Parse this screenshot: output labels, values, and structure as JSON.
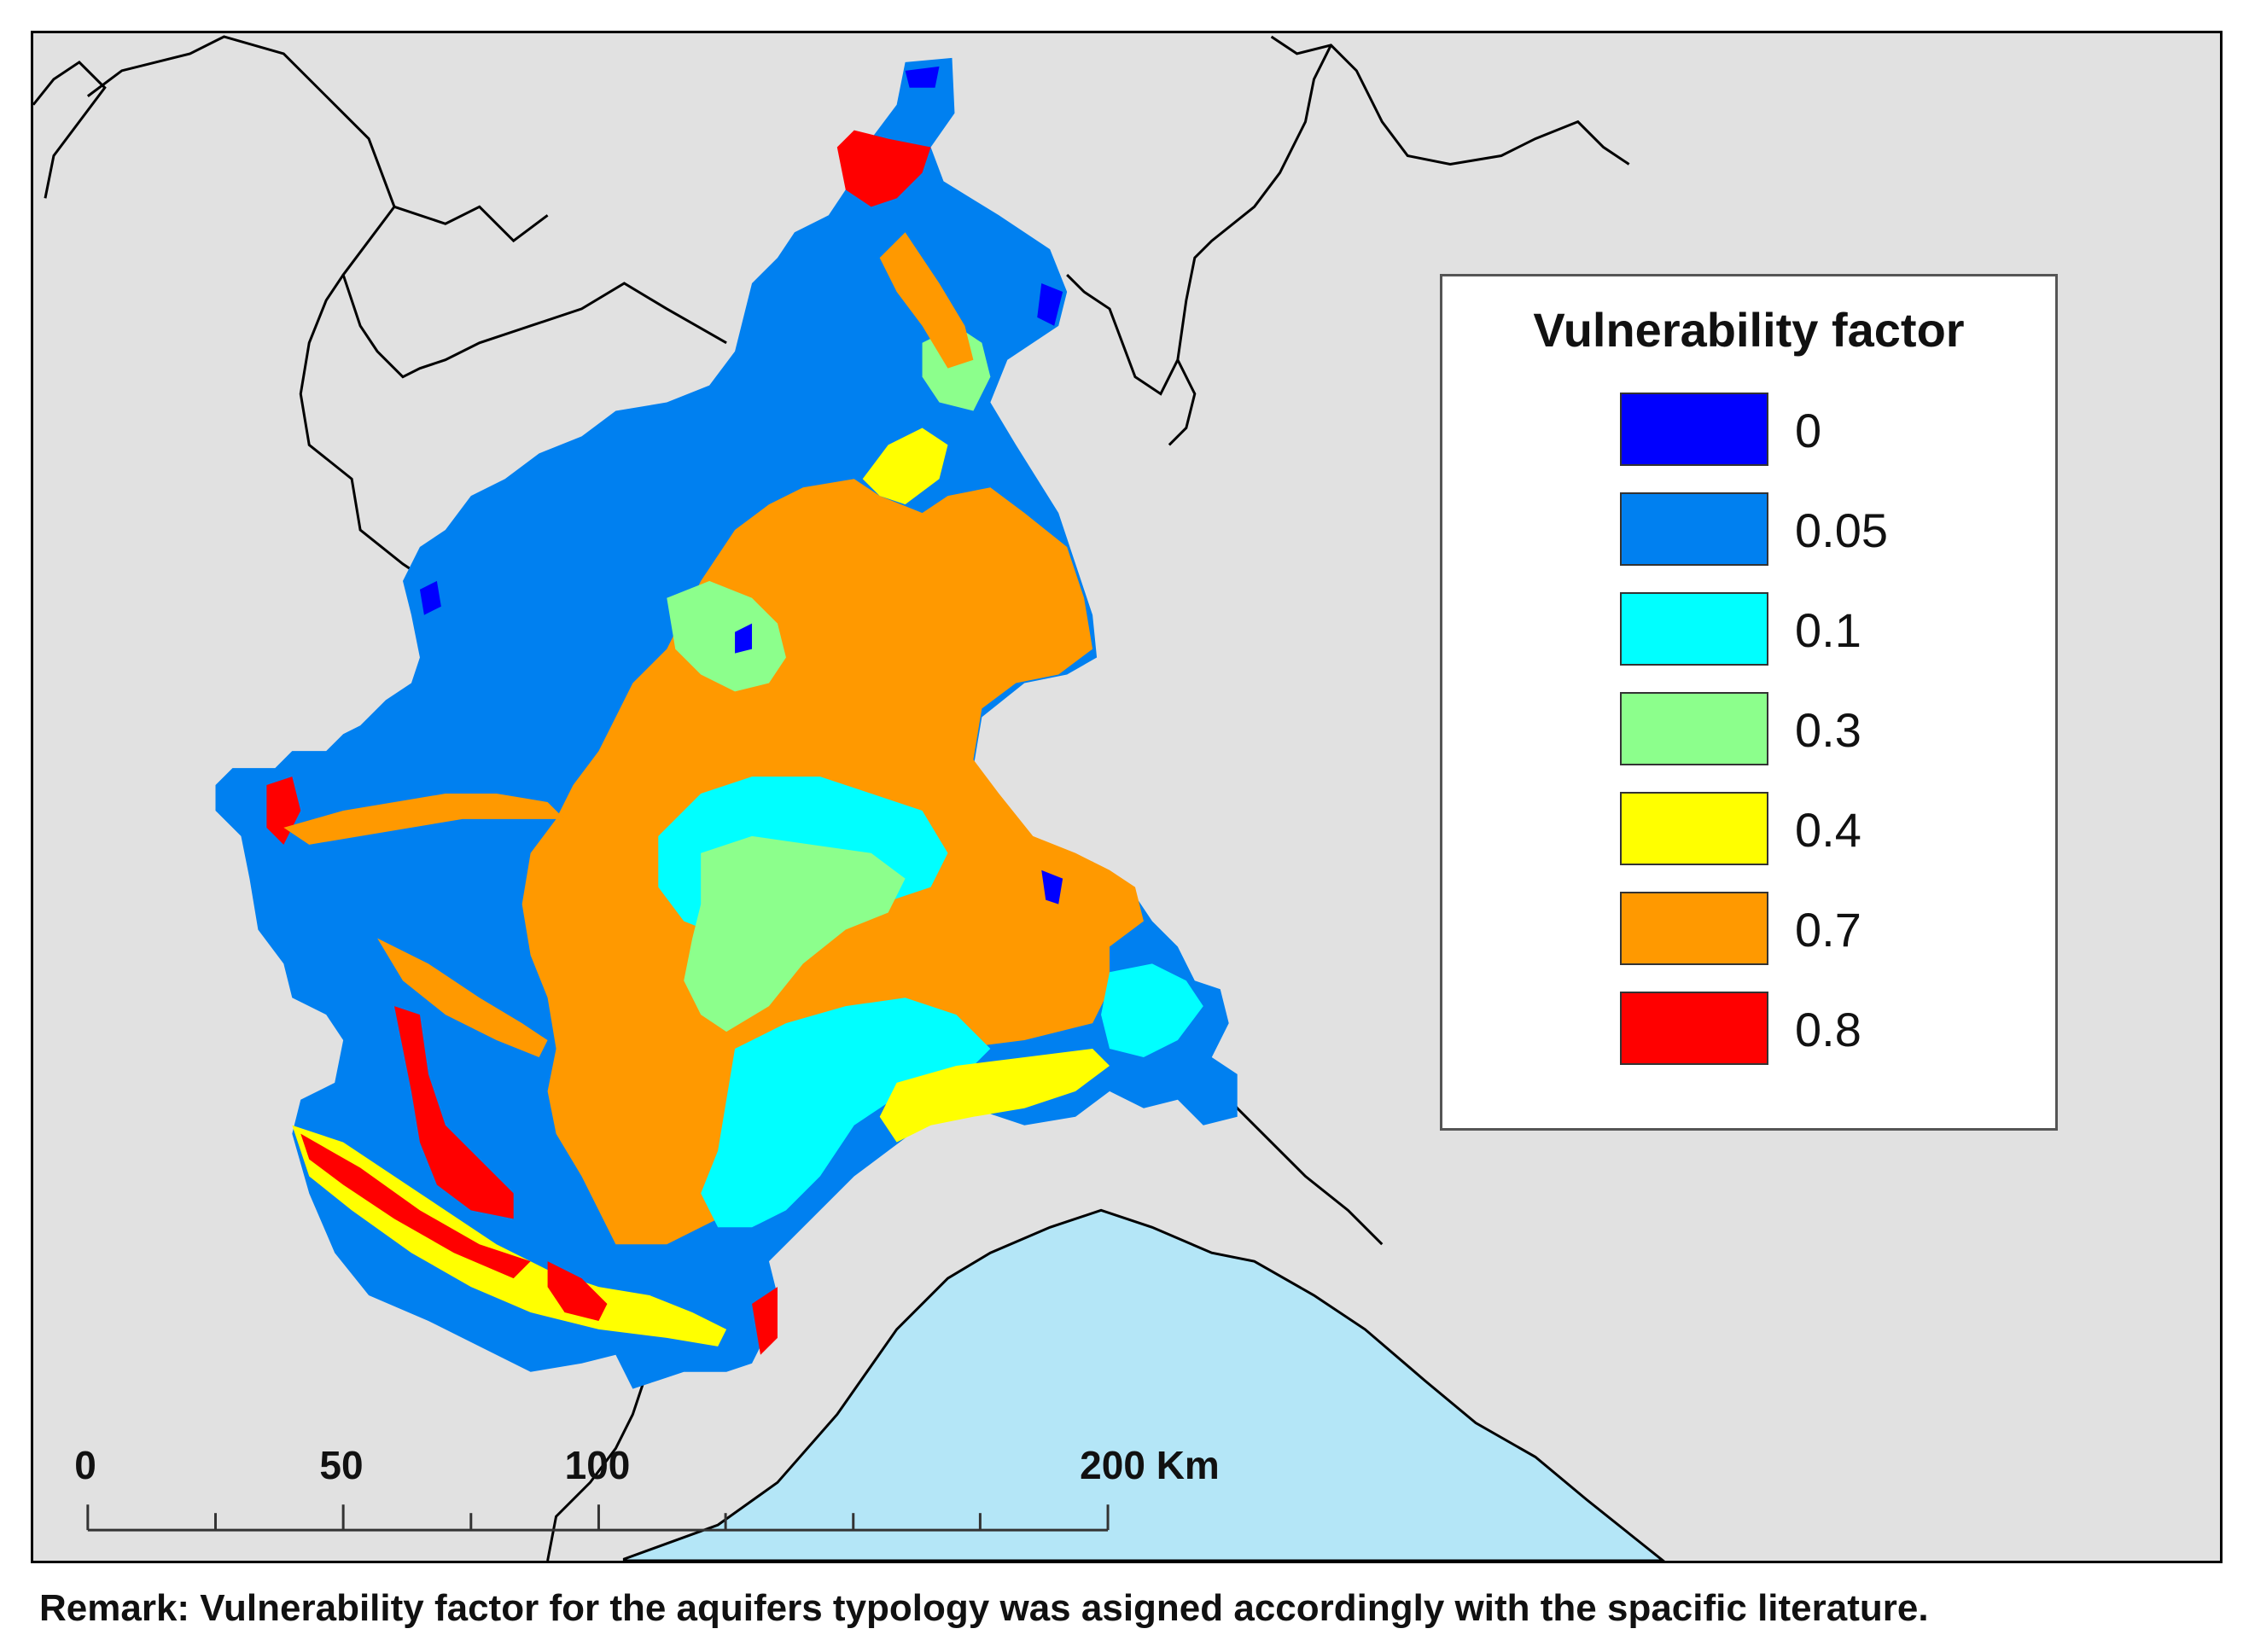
{
  "legend": {
    "title": "Vulnerability factor",
    "items": [
      {
        "label": "0",
        "color": "#0000ff"
      },
      {
        "label": "0.05",
        "color": "#0080f0"
      },
      {
        "label": "0.1",
        "color": "#00ffff"
      },
      {
        "label": "0.3",
        "color": "#8cff8c"
      },
      {
        "label": "0.4",
        "color": "#ffff00"
      },
      {
        "label": "0.7",
        "color": "#ff9900"
      },
      {
        "label": "0.8",
        "color": "#ff0000"
      }
    ]
  },
  "scale_bar": {
    "labels": [
      "0",
      "50",
      "100",
      "200 Km"
    ]
  },
  "remark": "Remark: Vulnerability factor for the aquifers typology was asigned accordingly with the spacific literature.",
  "map_colors": {
    "background": "#e1e1e1",
    "sea": "#b4e6f7",
    "borders": "#000000"
  }
}
